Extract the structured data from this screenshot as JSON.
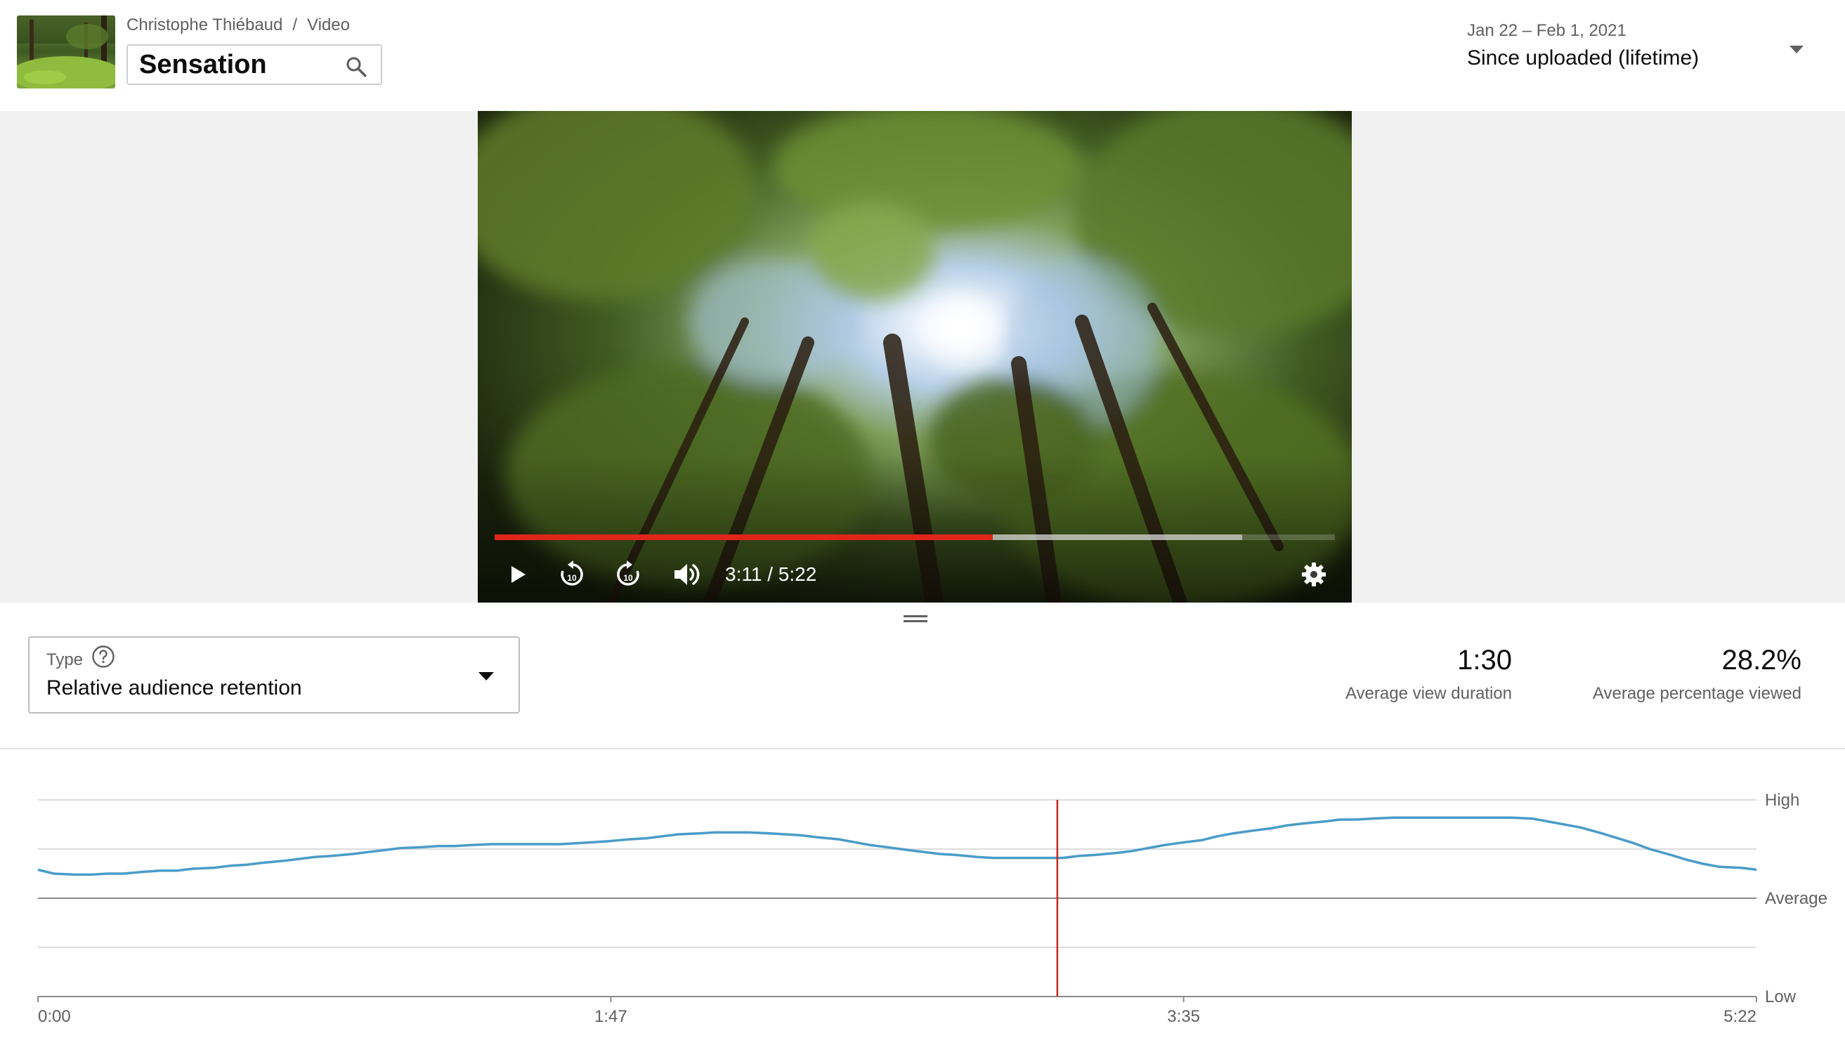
{
  "header": {
    "channel": "Christophe Thiébaud",
    "separator": "/",
    "section": "Video",
    "video_title": "Sensation",
    "search_icon": "search-icon",
    "date_range": "Jan 22 – Feb 1, 2021",
    "period": "Since uploaded (lifetime)",
    "period_icon": "caret-down-icon"
  },
  "player": {
    "current_time": "3:11",
    "time_separator": " / ",
    "duration": "5:22",
    "played_fraction": 0.593,
    "buffered_fraction": 0.89,
    "controls": [
      "play-icon",
      "rewind-10-icon",
      "forward-10-icon",
      "volume-icon",
      "settings-icon"
    ],
    "rewind_label": "10",
    "forward_label": "10"
  },
  "type_selector": {
    "label": "Type",
    "value": "Relative audience retention",
    "help_icon": "help-icon",
    "caret_icon": "caret-down-icon"
  },
  "metrics": [
    {
      "value": "1:30",
      "label": "Average view duration"
    },
    {
      "value": "28.2%",
      "label": "Average percentage viewed"
    }
  ],
  "colors": {
    "accent_red": "#e0251b",
    "line_blue": "#4a9cc8",
    "marker_red": "#c8261f"
  },
  "chart_data": {
    "type": "line",
    "x_ticks": [
      "0:00",
      "1:47",
      "3:35",
      "5:22"
    ],
    "y_ticks": [
      "High",
      "Average",
      "Low"
    ],
    "x_range_seconds": [
      0,
      322
    ],
    "y_scale": "relative (Low = 0, Average = 1, High = 2)",
    "ylim": [
      0,
      2
    ],
    "marker_seconds": 191,
    "grid": true,
    "series": [
      {
        "x_seconds": [
          0,
          3,
          7,
          10,
          13,
          16,
          20,
          23,
          26,
          29,
          33,
          36,
          39,
          42,
          46,
          49,
          52,
          55,
          59,
          62,
          65,
          68,
          72,
          75,
          78,
          81,
          85,
          88,
          91,
          94,
          98,
          101,
          104,
          107,
          111,
          114,
          117,
          120,
          124,
          127,
          130,
          133,
          137,
          140,
          143,
          146,
          150,
          153,
          156,
          159,
          163,
          166,
          169,
          172,
          176,
          179,
          182,
          185,
          189,
          192,
          195,
          198,
          202,
          205,
          208,
          211,
          215,
          218,
          221,
          224,
          228,
          231,
          234,
          237,
          241,
          244,
          247,
          250,
          254,
          257,
          260,
          263,
          267,
          270,
          273,
          276,
          280,
          283,
          286,
          289,
          293,
          296,
          299,
          302,
          306,
          309,
          312,
          315,
          319,
          322
        ],
        "y": [
          1.29,
          1.25,
          1.24,
          1.24,
          1.25,
          1.25,
          1.27,
          1.28,
          1.28,
          1.3,
          1.31,
          1.33,
          1.34,
          1.36,
          1.38,
          1.4,
          1.42,
          1.43,
          1.45,
          1.47,
          1.49,
          1.51,
          1.52,
          1.53,
          1.53,
          1.54,
          1.55,
          1.55,
          1.55,
          1.55,
          1.55,
          1.56,
          1.57,
          1.58,
          1.6,
          1.61,
          1.63,
          1.65,
          1.66,
          1.67,
          1.67,
          1.67,
          1.66,
          1.65,
          1.64,
          1.62,
          1.6,
          1.57,
          1.54,
          1.52,
          1.49,
          1.47,
          1.45,
          1.44,
          1.42,
          1.41,
          1.41,
          1.41,
          1.41,
          1.41,
          1.43,
          1.44,
          1.46,
          1.48,
          1.51,
          1.54,
          1.57,
          1.59,
          1.63,
          1.66,
          1.69,
          1.71,
          1.74,
          1.76,
          1.78,
          1.8,
          1.8,
          1.81,
          1.82,
          1.82,
          1.82,
          1.82,
          1.82,
          1.82,
          1.82,
          1.82,
          1.81,
          1.78,
          1.75,
          1.72,
          1.66,
          1.61,
          1.56,
          1.5,
          1.44,
          1.39,
          1.35,
          1.32,
          1.31,
          1.29
        ]
      }
    ]
  }
}
